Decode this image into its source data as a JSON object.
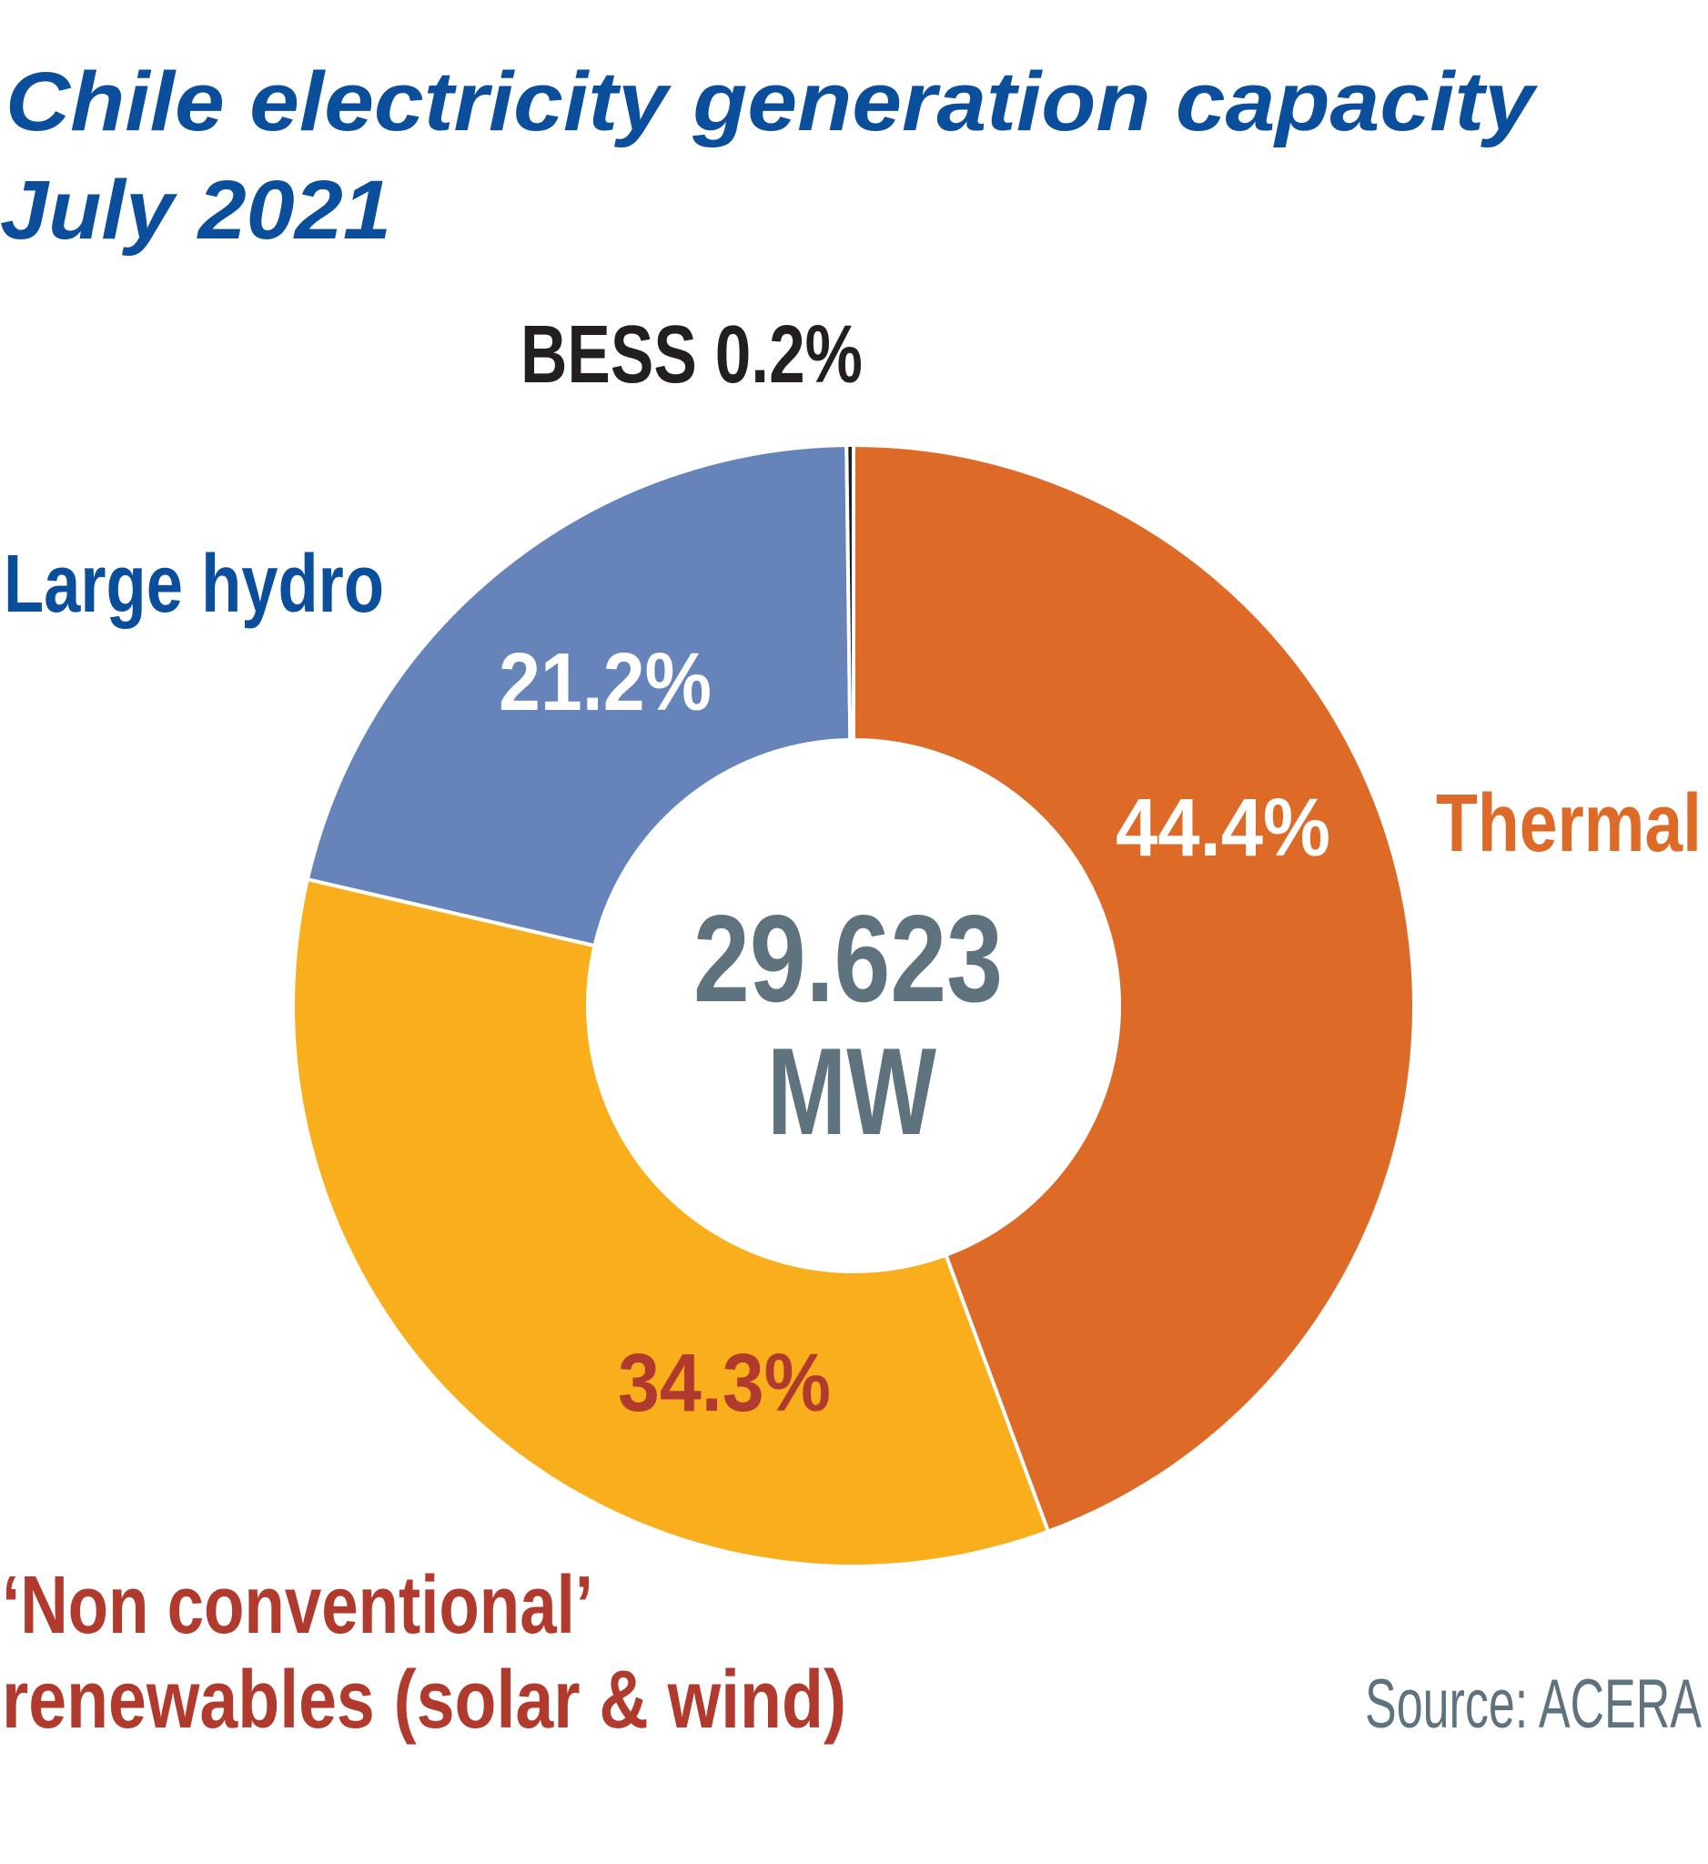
{
  "chart_data": {
    "type": "pie",
    "variant": "donut",
    "title_line1": "Chile electricity generation capacity",
    "title_line2": "July 2021",
    "center_value": "29.623",
    "center_unit": "MW",
    "source": "Source: ACERA",
    "slices": [
      {
        "name": "Thermal",
        "value": 44.4,
        "label": "44.4%",
        "color": "#DD6B27",
        "label_color": "#FFFFFF",
        "name_color": "#DD6B27"
      },
      {
        "name_line1": "‘Non conventional’",
        "name_line2": "renewables (solar & wind)",
        "value": 34.3,
        "label": "34.3%",
        "color": "#F9AE1B",
        "label_color": "#B03A2E",
        "name_color": "#B03A2E"
      },
      {
        "name": "Large hydro",
        "value": 21.2,
        "label": "21.2%",
        "color": "#6784BA",
        "label_color": "#FFFFFF",
        "name_color": "#0B4F9C"
      },
      {
        "name": "BESS",
        "value": 0.2,
        "label": "BESS 0.2%",
        "color": "#231F20",
        "label_color": "#231F20"
      }
    ],
    "colors": {
      "title": "#0B4F9C",
      "center_text": "#5F737E",
      "source": "#5F737E"
    }
  }
}
